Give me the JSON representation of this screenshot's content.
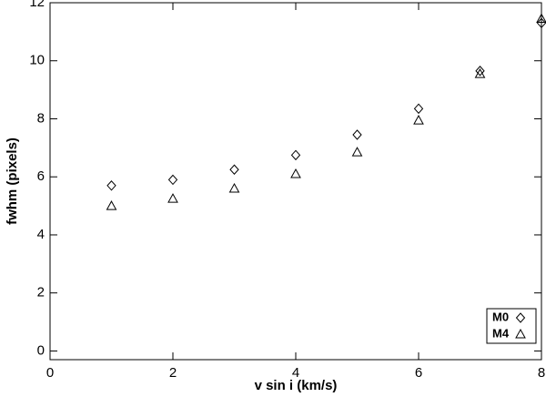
{
  "chart_data": {
    "type": "scatter",
    "x_label": "v sin i (km/s)",
    "y_label": "fwhm (pixels)",
    "xlim": [
      0,
      8
    ],
    "ylim": [
      -0.3,
      12
    ],
    "xticks": [
      0,
      2,
      4,
      6,
      8
    ],
    "yticks": [
      0,
      2,
      4,
      6,
      8,
      10,
      12
    ],
    "legend": "lower right",
    "series": [
      {
        "name": "M0",
        "color": "#000000",
        "marker": "diamond",
        "x": [
          1,
          2,
          3,
          4,
          5,
          6,
          7,
          8
        ],
        "values": [
          5.7,
          5.9,
          6.25,
          6.75,
          7.45,
          8.35,
          9.65,
          11.3
        ]
      },
      {
        "name": "M4",
        "color": "#000000",
        "marker": "triangle",
        "x": [
          1,
          2,
          3,
          4,
          5,
          6,
          7,
          8
        ],
        "values": [
          5.0,
          5.25,
          5.6,
          6.1,
          6.85,
          7.95,
          9.55,
          11.45
        ]
      }
    ]
  }
}
